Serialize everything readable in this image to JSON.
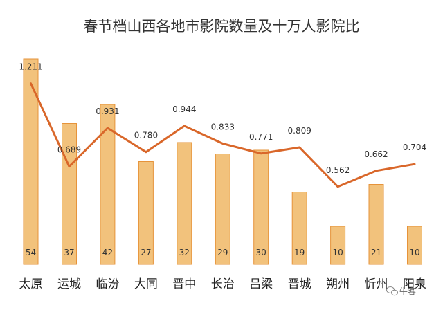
{
  "chart_data": {
    "type": "bar",
    "title": "春节档山西各地市影院数量及十万人影院比",
    "categories": [
      "太原",
      "运城",
      "临汾",
      "大同",
      "晋中",
      "长治",
      "吕梁",
      "晋城",
      "朔州",
      "忻州",
      "阳泉"
    ],
    "series": [
      {
        "type": "bar",
        "values": [
          54,
          37,
          42,
          27,
          32,
          29,
          30,
          19,
          10,
          21,
          10
        ]
      },
      {
        "type": "line",
        "values": [
          1.211,
          0.689,
          0.931,
          0.78,
          0.944,
          0.833,
          0.771,
          0.809,
          0.562,
          0.662,
          0.704
        ]
      }
    ],
    "colors": {
      "bar_fill": "#f2c27c",
      "bar_stroke": "#e6933a",
      "line": "#d9672a"
    },
    "watermark": "牛客",
    "grid": false,
    "legend": "none"
  }
}
